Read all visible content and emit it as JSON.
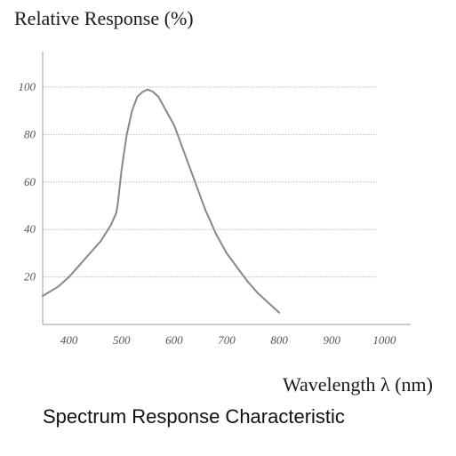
{
  "chart_data": {
    "type": "line",
    "ylabel": "Relative Response (%)",
    "xlabel": "Wavelength λ (nm)",
    "caption": "Spectrum Response Characteristic",
    "xlim": [
      350,
      1050
    ],
    "ylim": [
      0,
      115
    ],
    "x_ticks": [
      400,
      500,
      600,
      700,
      800,
      900,
      1000
    ],
    "y_ticks": [
      20,
      40,
      60,
      80,
      100
    ],
    "grid": "horizontal-dotted",
    "colors": {
      "curve": "#888888",
      "grid": "#b8b8b8",
      "axis": "#999999"
    },
    "series": [
      {
        "x": [
          350,
          380,
          400,
          420,
          440,
          460,
          480,
          490,
          493,
          500,
          510,
          520,
          530,
          540,
          550,
          560,
          570,
          580,
          590,
          600,
          610,
          620,
          630,
          640,
          650,
          660,
          670,
          680,
          690,
          700,
          720,
          740,
          760,
          780,
          800
        ],
        "y": [
          12,
          16,
          20,
          25,
          30,
          35,
          42,
          47,
          51,
          65,
          80,
          90,
          96,
          98,
          99,
          98,
          96,
          92,
          88,
          84,
          78,
          72,
          66,
          60,
          54,
          48,
          43,
          38,
          34,
          30,
          24,
          18,
          13,
          9,
          5
        ]
      }
    ]
  }
}
